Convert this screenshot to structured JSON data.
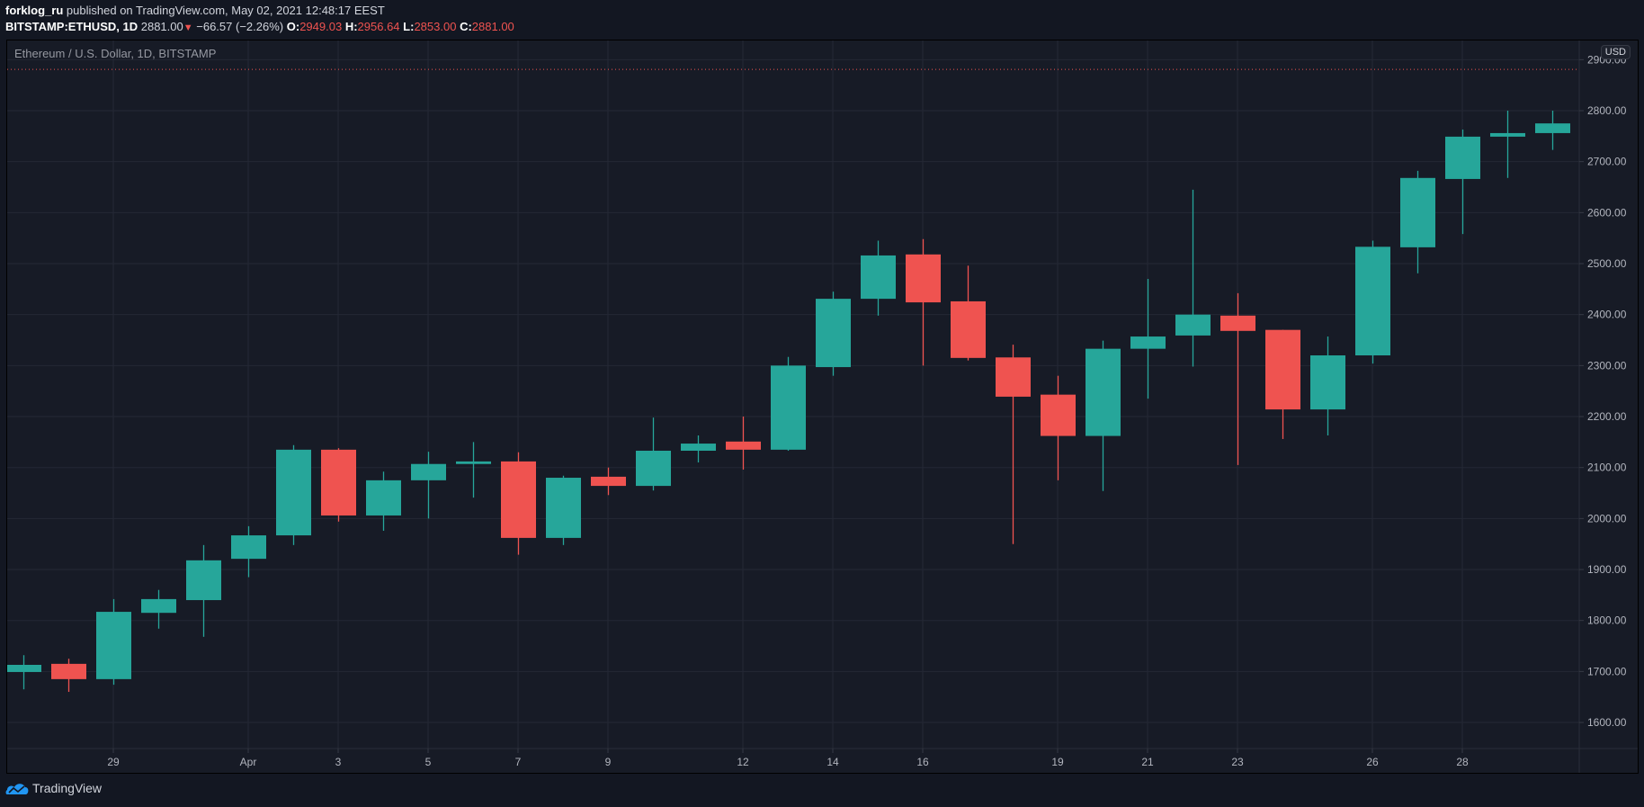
{
  "header": {
    "author": "forklog_ru",
    "published_text": "published on TradingView.com, May 02, 2021 12:48:17 EEST",
    "symbol": "BITSTAMP:ETHUSD, 1D",
    "last_price": "2881.00",
    "change_arrow": "▼",
    "change": "−66.57 (−2.26%)",
    "o_label": "O:",
    "o_value": "2949.03",
    "h_label": "H:",
    "h_value": "2956.64",
    "l_label": "L:",
    "l_value": "2853.00",
    "c_label": "C:",
    "c_value": "2881.00"
  },
  "chart": {
    "legend_title": "Ethereum / U.S. Dollar, 1D, BITSTAMP",
    "currency_badge": "USD"
  },
  "footer": {
    "brand": "TradingView"
  },
  "colors": {
    "up": "#26a69a",
    "down": "#ef5350",
    "background": "#131722",
    "pane": "#171b26",
    "grid": "#242835",
    "axis_text": "#b2b5be",
    "brand_blue": "#2196f3"
  },
  "chart_data": {
    "type": "candlestick",
    "title": "Ethereum / U.S. Dollar, 1D, BITSTAMP",
    "xlabel": "",
    "ylabel": "USD",
    "ylim": [
      1550,
      2950
    ],
    "grid": true,
    "current_price_line": 2881.0,
    "y_ticks": [
      1600,
      1700,
      1800,
      1900,
      2000,
      2100,
      2200,
      2300,
      2400,
      2500,
      2600,
      2700,
      2800,
      2900
    ],
    "x_tick_labels": [
      {
        "label": "29",
        "index": 2
      },
      {
        "label": "Apr",
        "index": 5
      },
      {
        "label": "3",
        "index": 7
      },
      {
        "label": "5",
        "index": 9
      },
      {
        "label": "7",
        "index": 11
      },
      {
        "label": "9",
        "index": 13
      },
      {
        "label": "12",
        "index": 16
      },
      {
        "label": "14",
        "index": 18
      },
      {
        "label": "16",
        "index": 20
      },
      {
        "label": "19",
        "index": 23
      },
      {
        "label": "21",
        "index": 25
      },
      {
        "label": "23",
        "index": 27
      },
      {
        "label": "26",
        "index": 30
      },
      {
        "label": "28",
        "index": 32
      }
    ],
    "candles": [
      {
        "date": "Mar 27",
        "open": 1699,
        "high": 1732,
        "low": 1665,
        "close": 1713
      },
      {
        "date": "Mar 28",
        "open": 1715,
        "high": 1725,
        "low": 1660,
        "close": 1685
      },
      {
        "date": "Mar 29",
        "open": 1685,
        "high": 1842,
        "low": 1674,
        "close": 1817
      },
      {
        "date": "Mar 30",
        "open": 1815,
        "high": 1860,
        "low": 1784,
        "close": 1842
      },
      {
        "date": "Mar 31",
        "open": 1840,
        "high": 1948,
        "low": 1768,
        "close": 1918
      },
      {
        "date": "Apr 1",
        "open": 1921,
        "high": 1985,
        "low": 1885,
        "close": 1967
      },
      {
        "date": "Apr 2",
        "open": 1967,
        "high": 2144,
        "low": 1948,
        "close": 2135
      },
      {
        "date": "Apr 3",
        "open": 2135,
        "high": 2138,
        "low": 1994,
        "close": 2006
      },
      {
        "date": "Apr 4",
        "open": 2006,
        "high": 2092,
        "low": 1976,
        "close": 2075
      },
      {
        "date": "Apr 5",
        "open": 2075,
        "high": 2131,
        "low": 2000,
        "close": 2107
      },
      {
        "date": "Apr 6",
        "open": 2107,
        "high": 2150,
        "low": 2041,
        "close": 2112
      },
      {
        "date": "Apr 7",
        "open": 2112,
        "high": 2130,
        "low": 1929,
        "close": 1962
      },
      {
        "date": "Apr 8",
        "open": 1962,
        "high": 2084,
        "low": 1948,
        "close": 2080
      },
      {
        "date": "Apr 9",
        "open": 2082,
        "high": 2100,
        "low": 2046,
        "close": 2064
      },
      {
        "date": "Apr 10",
        "open": 2064,
        "high": 2198,
        "low": 2055,
        "close": 2133
      },
      {
        "date": "Apr 11",
        "open": 2133,
        "high": 2163,
        "low": 2110,
        "close": 2147
      },
      {
        "date": "Apr 12",
        "open": 2151,
        "high": 2200,
        "low": 2096,
        "close": 2135
      },
      {
        "date": "Apr 13",
        "open": 2135,
        "high": 2317,
        "low": 2133,
        "close": 2300
      },
      {
        "date": "Apr 14",
        "open": 2297,
        "high": 2445,
        "low": 2280,
        "close": 2431
      },
      {
        "date": "Apr 15",
        "open": 2431,
        "high": 2545,
        "low": 2398,
        "close": 2516
      },
      {
        "date": "Apr 16",
        "open": 2518,
        "high": 2548,
        "low": 2300,
        "close": 2424
      },
      {
        "date": "Apr 17",
        "open": 2426,
        "high": 2496,
        "low": 2310,
        "close": 2315
      },
      {
        "date": "Apr 18",
        "open": 2316,
        "high": 2341,
        "low": 1950,
        "close": 2239
      },
      {
        "date": "Apr 19",
        "open": 2243,
        "high": 2280,
        "low": 2075,
        "close": 2162
      },
      {
        "date": "Apr 20",
        "open": 2162,
        "high": 2349,
        "low": 2054,
        "close": 2333
      },
      {
        "date": "Apr 21",
        "open": 2333,
        "high": 2470,
        "low": 2235,
        "close": 2357
      },
      {
        "date": "Apr 22",
        "open": 2359,
        "high": 2645,
        "low": 2298,
        "close": 2400
      },
      {
        "date": "Apr 23",
        "open": 2398,
        "high": 2442,
        "low": 2105,
        "close": 2368
      },
      {
        "date": "Apr 24",
        "open": 2370,
        "high": 2370,
        "low": 2156,
        "close": 2214
      },
      {
        "date": "Apr 25",
        "open": 2214,
        "high": 2357,
        "low": 2163,
        "close": 2320
      },
      {
        "date": "Apr 26",
        "open": 2320,
        "high": 2545,
        "low": 2304,
        "close": 2533
      },
      {
        "date": "Apr 27",
        "open": 2532,
        "high": 2682,
        "low": 2481,
        "close": 2668
      },
      {
        "date": "Apr 28",
        "open": 2666,
        "high": 2763,
        "low": 2558,
        "close": 2749
      },
      {
        "date": "Apr 29",
        "open": 2749,
        "high": 2800,
        "low": 2668,
        "close": 2756
      },
      {
        "date": "Apr 30",
        "open": 2756,
        "high": 2800,
        "low": 2723,
        "close": 2775
      }
    ]
  }
}
